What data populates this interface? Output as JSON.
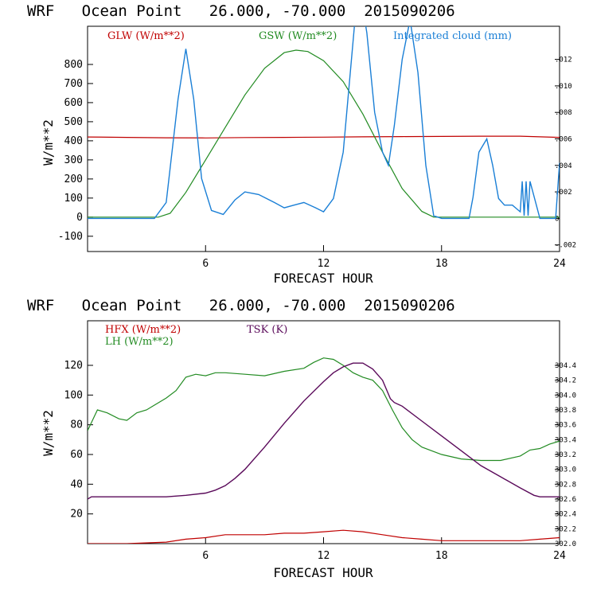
{
  "chart_data": [
    {
      "type": "line",
      "title": "WRF   Ocean Point   26.000, -70.000  2015090206",
      "xlabel": "FORECAST HOUR",
      "ylabel": "W/m**2",
      "xlim": [
        0,
        24
      ],
      "ylim": [
        -180,
        1000
      ],
      "x_ticks": [
        6,
        12,
        18,
        24
      ],
      "x_tick_labels": [
        "6",
        "12",
        "18",
        "24"
      ],
      "y_ticks": [
        -100,
        0,
        100,
        200,
        300,
        400,
        500,
        600,
        700,
        800
      ],
      "y_tick_labels": [
        "-100",
        "0",
        "100",
        "200",
        "300",
        "400",
        "500",
        "600",
        "700",
        "800"
      ],
      "y2lim": [
        -0.0025,
        0.0145
      ],
      "y2_ticks": [
        -0.002,
        0,
        0.002,
        0.004,
        0.006,
        0.008,
        0.01,
        0.012
      ],
      "y2_tick_labels": [
        "-.002",
        "0",
        ".002",
        ".004",
        ".006",
        ".008",
        ".010",
        ".012"
      ],
      "series": [
        {
          "name": "GLW (W/m**2)",
          "color": "#c00000",
          "axis": "left",
          "x": [
            0,
            2,
            4,
            6,
            8,
            10,
            12,
            14,
            16,
            18,
            20,
            22,
            24
          ],
          "y": [
            420,
            418,
            416,
            415,
            417,
            418,
            419,
            421,
            422,
            423,
            424,
            424,
            418
          ]
        },
        {
          "name": "GSW (W/m**2)",
          "color": "#228b22",
          "axis": "left",
          "x": [
            0,
            3.6,
            4.2,
            5,
            6,
            7,
            8,
            9,
            10,
            10.6,
            11.2,
            12,
            13,
            14,
            15,
            16,
            17,
            17.6,
            18,
            24
          ],
          "y": [
            0,
            0,
            20,
            130,
            300,
            470,
            640,
            780,
            862,
            875,
            868,
            820,
            710,
            540,
            340,
            150,
            30,
            0,
            0,
            0
          ]
        },
        {
          "name": "Integrated cloud (mm)",
          "color": "#1a7fd6",
          "axis": "right",
          "x": [
            0,
            3.4,
            4.0,
            4.6,
            5.0,
            5.4,
            5.8,
            6.3,
            6.9,
            7.5,
            8.0,
            8.7,
            9.5,
            10.0,
            10.5,
            11.0,
            11.6,
            12.0,
            12.5,
            13.0,
            13.3,
            13.6,
            13.9,
            14.2,
            14.6,
            15.0,
            15.3,
            15.6,
            16.0,
            16.4,
            16.8,
            17.2,
            17.6,
            18.0,
            19.4,
            19.6,
            19.9,
            20.3,
            20.6,
            20.9,
            21.2,
            21.6,
            22.0,
            22.1,
            22.2,
            22.3,
            22.4,
            22.5,
            23.0,
            23.8,
            24.0
          ],
          "y": [
            0,
            0,
            0.0012,
            0.009,
            0.0128,
            0.009,
            0.003,
            0.0006,
            0.0003,
            0.0014,
            0.002,
            0.0018,
            0.0012,
            0.0008,
            0.001,
            0.0012,
            0.0008,
            0.0005,
            0.0015,
            0.005,
            0.01,
            0.015,
            0.0168,
            0.014,
            0.008,
            0.005,
            0.004,
            0.007,
            0.012,
            0.015,
            0.011,
            0.004,
            0.0002,
            0,
            0,
            0.0016,
            0.005,
            0.006,
            0.004,
            0.0015,
            0.001,
            0.001,
            0.0005,
            0.0028,
            0.0002,
            0.0028,
            0.0002,
            0.0028,
            0,
            0,
            0.0042
          ]
        }
      ]
    },
    {
      "type": "line",
      "title": "WRF   Ocean Point   26.000, -70.000  2015090206",
      "xlabel": "FORECAST HOUR",
      "ylabel": "W/m**2",
      "xlim": [
        0,
        24
      ],
      "ylim": [
        0,
        150
      ],
      "x_ticks": [
        6,
        12,
        18,
        24
      ],
      "x_tick_labels": [
        "6",
        "12",
        "18",
        "24"
      ],
      "y_ticks": [
        20,
        40,
        60,
        80,
        100,
        120
      ],
      "y_tick_labels": [
        "20",
        "40",
        "60",
        "80",
        "100",
        "120"
      ],
      "y2lim": [
        302.0,
        305.0
      ],
      "y2_ticks": [
        302.0,
        302.2,
        302.4,
        302.6,
        302.8,
        303.0,
        303.2,
        303.4,
        303.6,
        303.8,
        304.0,
        304.2,
        304.4
      ],
      "y2_tick_labels": [
        "302.0",
        "302.2",
        "302.4",
        "302.6",
        "302.8",
        "303.0",
        "303.2",
        "303.4",
        "303.6",
        "303.8",
        "304.0",
        "304.2",
        "304.4"
      ],
      "series": [
        {
          "name": "HFX (W/m**2)",
          "color": "#c00000",
          "axis": "left",
          "x": [
            0,
            2,
            4,
            5,
            6,
            7,
            8,
            9,
            10,
            11,
            12,
            13,
            14,
            15,
            16,
            17,
            18,
            19,
            20,
            21,
            22,
            23,
            24
          ],
          "y": [
            0,
            0,
            1,
            3,
            4,
            6,
            6,
            6,
            7,
            7,
            8,
            9,
            8,
            6,
            4,
            3,
            2,
            2,
            2,
            2,
            2,
            3,
            4
          ]
        },
        {
          "name": "LH (W/m**2)",
          "color": "#228b22",
          "axis": "left",
          "x": [
            0,
            0.5,
            1.0,
            1.6,
            2.0,
            2.5,
            3.0,
            3.5,
            4.0,
            4.5,
            5.0,
            5.5,
            6.0,
            6.5,
            7.0,
            8.0,
            9.0,
            10.0,
            11.0,
            11.5,
            12.0,
            12.5,
            13.0,
            13.5,
            14.0,
            14.5,
            15.0,
            15.5,
            16.0,
            16.5,
            17.0,
            18.0,
            19.0,
            20.0,
            21.0,
            22.0,
            22.5,
            23.0,
            23.5,
            24.0
          ],
          "y": [
            76,
            90,
            88,
            84,
            83,
            88,
            90,
            94,
            98,
            103,
            112,
            114,
            113,
            115,
            115,
            114,
            113,
            116,
            118,
            122,
            125,
            124,
            120,
            115,
            112,
            110,
            103,
            90,
            78,
            70,
            65,
            60,
            57,
            56,
            56,
            59,
            63,
            64,
            67,
            69
          ]
        },
        {
          "name": "TSK (K)",
          "color": "#5a0a5a",
          "axis": "right",
          "x": [
            0,
            0.2,
            2,
            4,
            5,
            6,
            6.5,
            7,
            7.5,
            8,
            9,
            10,
            11,
            12,
            12.5,
            13,
            13.5,
            14,
            14.5,
            15,
            15.4,
            15.6,
            16,
            17,
            18,
            19,
            20,
            21,
            22,
            22.7,
            23,
            24
          ],
          "y": [
            302.6,
            302.63,
            302.63,
            302.63,
            302.65,
            302.68,
            302.72,
            302.78,
            302.88,
            303.0,
            303.3,
            303.62,
            303.92,
            304.18,
            304.3,
            304.38,
            304.43,
            304.43,
            304.35,
            304.2,
            303.95,
            303.9,
            303.85,
            303.65,
            303.45,
            303.25,
            303.05,
            302.9,
            302.75,
            302.65,
            302.63,
            302.63
          ]
        }
      ]
    }
  ]
}
